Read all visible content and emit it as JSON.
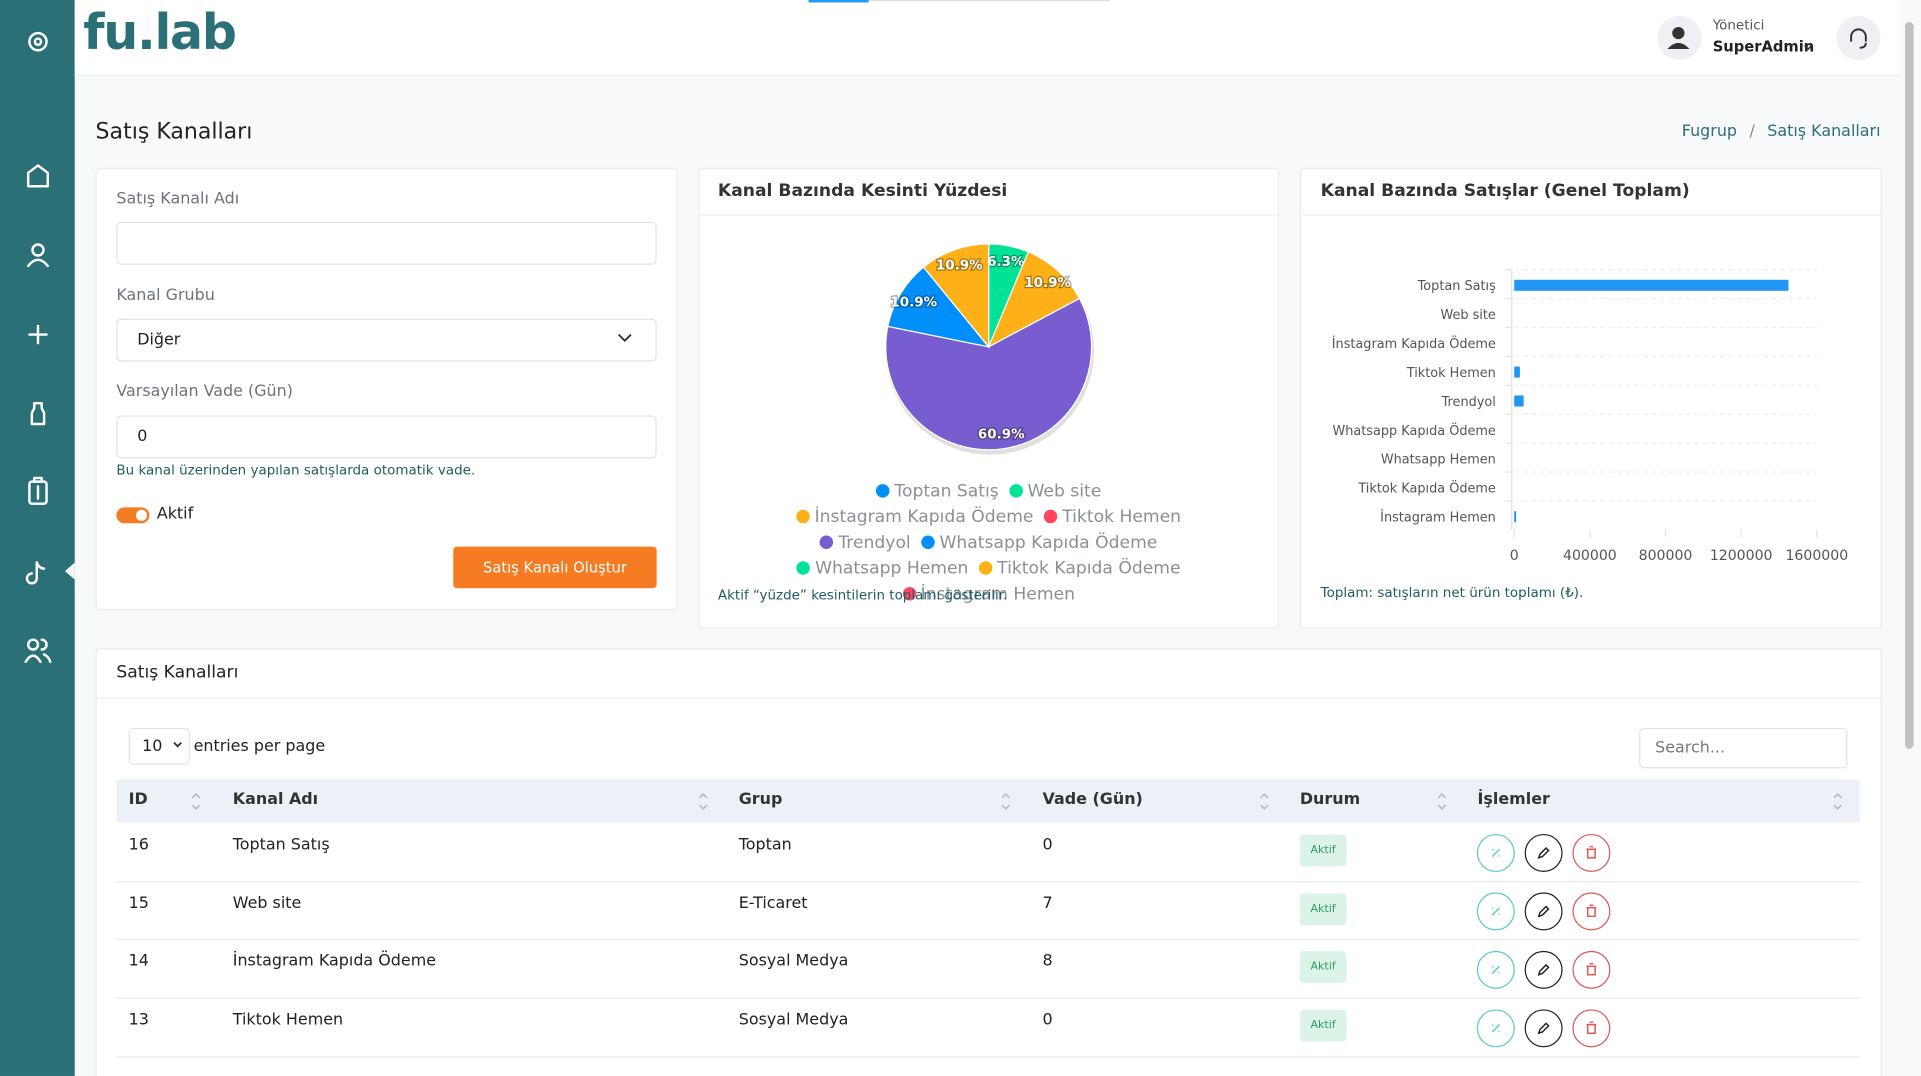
{
  "brand": "fu.lab",
  "user": {
    "role": "Yönetici",
    "name": "SuperAdmin"
  },
  "page_title": "Satış Kanalları",
  "breadcrumb": {
    "items": [
      "Fugrup",
      "Satış Kanalları"
    ],
    "separator": "/"
  },
  "form": {
    "name_label": "Satış Kanalı Adı",
    "group_label": "Kanal Grubu",
    "group_value": "Diğer",
    "term_label": "Varsayılan Vade (Gün)",
    "term_value": "0",
    "term_help": "Bu kanal üzerinden yapılan satışlarda otomatik vade.",
    "active_label": "Aktif",
    "submit": "Satış Kanalı Oluştur"
  },
  "chart_data": [
    {
      "type": "pie",
      "title": "Kanal Bazında Kesinti Yüzdesi",
      "categories": [
        "Toptan Satış",
        "Web site",
        "İnstagram Kapıda Ödeme",
        "Tiktok Hemen",
        "Trendyol",
        "Whatsapp Kapıda Ödeme",
        "Whatsapp Hemen",
        "Tiktok Kapıda Ödeme",
        "İnstagram Hemen"
      ],
      "values": [
        0,
        6.3,
        10.9,
        0,
        60.9,
        10.9,
        0,
        10.9,
        0
      ],
      "value_labels": [
        null,
        "6.3%",
        "10.9%",
        null,
        "60.9%",
        "10.9%",
        null,
        "10.9%",
        null
      ],
      "colors": [
        "#008ffb",
        "#00e396",
        "#feb019",
        "#ff4560",
        "#775dd0",
        "#008ffb",
        "#00e396",
        "#feb019",
        "#ff4560"
      ],
      "note": "Aktif “yüzde” kesintilerin toplamı gösterilir."
    },
    {
      "type": "bar",
      "orientation": "horizontal",
      "title": "Kanal Bazında Satışlar (Genel Toplam)",
      "categories": [
        "Toptan Satış",
        "Web site",
        "İnstagram Kapıda Ödeme",
        "Tiktok Hemen",
        "Trendyol",
        "Whatsapp Kapıda Ödeme",
        "Whatsapp Hemen",
        "Tiktok Kapıda Ödeme",
        "İnstagram Hemen"
      ],
      "values": [
        1450000,
        0,
        0,
        30000,
        50000,
        0,
        0,
        0,
        10000
      ],
      "color": "#2196f3",
      "xlim": [
        0,
        1600000
      ],
      "xticks": [
        0,
        400000,
        800000,
        1200000,
        1600000
      ],
      "grid": true,
      "note": "Toplam: satışların net ürün toplamı (₺)."
    }
  ],
  "table": {
    "title": "Satış Kanalları",
    "page_size": "10",
    "page_size_label": "entries per page",
    "search_placeholder": "Search...",
    "columns": [
      "ID",
      "Kanal Adı",
      "Grup",
      "Vade (Gün)",
      "Durum",
      "İşlemler"
    ],
    "rows": [
      [
        16,
        "Toptan Satış",
        "Toptan",
        0,
        "Aktif"
      ],
      [
        15,
        "Web site",
        "E-Ticaret",
        7,
        "Aktif"
      ],
      [
        14,
        "İnstagram Kapıda Ödeme",
        "Sosyal Medya",
        8,
        "Aktif"
      ],
      [
        13,
        "Tiktok Hemen",
        "Sosyal Medya",
        0,
        "Aktif"
      ]
    ]
  }
}
